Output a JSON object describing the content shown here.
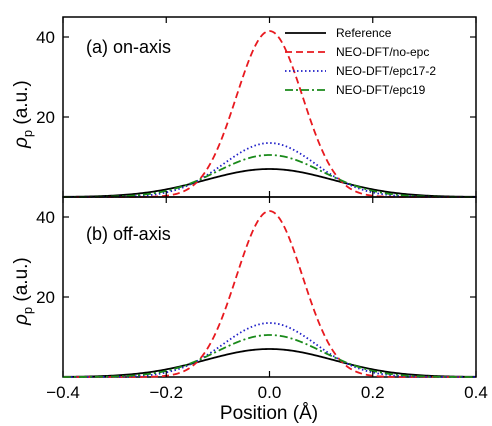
{
  "chart_data": [
    {
      "type": "line",
      "panel_label": "(a) on-axis",
      "xlabel": "Position (Å)",
      "ylabel_symbol": "ρ",
      "ylabel_subscript": "p",
      "ylabel_unit": "(a.u.)",
      "xlim": [
        -0.4,
        0.4
      ],
      "ylim": [
        0,
        45
      ],
      "xticks": [
        "−0.4",
        "−0.2",
        "0.0",
        "0.2",
        "0.4"
      ],
      "xtick_values": [
        -0.4,
        -0.2,
        0.0,
        0.2,
        0.4
      ],
      "yticks": [
        "20",
        "40"
      ],
      "ytick_values": [
        20,
        40
      ],
      "grid": false,
      "legend_position": "top-right",
      "series": [
        {
          "name": "Reference",
          "color": "#000000",
          "dash": "solid",
          "peak": 7.0,
          "sigma": 0.124
        },
        {
          "name": "NEO-DFT/no-epc",
          "color": "#e8191f",
          "dash": "dashed",
          "peak": 41.5,
          "sigma": 0.064
        },
        {
          "name": "NEO-DFT/epc17-2",
          "color": "#1f1fc8",
          "dash": "dotted",
          "peak": 13.5,
          "sigma": 0.09
        },
        {
          "name": "NEO-DFT/epc19",
          "color": "#1a8a1a",
          "dash": "dashdot",
          "peak": 10.5,
          "sigma": 0.102
        }
      ]
    },
    {
      "type": "line",
      "panel_label": "(b) off-axis",
      "xlabel": "Position (Å)",
      "ylabel_symbol": "ρ",
      "ylabel_subscript": "p",
      "ylabel_unit": "(a.u.)",
      "xlim": [
        -0.4,
        0.4
      ],
      "ylim": [
        0,
        45
      ],
      "xticks": [
        "−0.4",
        "−0.2",
        "0.0",
        "0.2",
        "0.4"
      ],
      "xtick_values": [
        -0.4,
        -0.2,
        0.0,
        0.2,
        0.4
      ],
      "yticks": [
        "20",
        "40"
      ],
      "ytick_values": [
        20,
        40
      ],
      "grid": false,
      "series": [
        {
          "name": "Reference",
          "color": "#000000",
          "dash": "solid",
          "peak": 7.0,
          "sigma": 0.124
        },
        {
          "name": "NEO-DFT/no-epc",
          "color": "#e8191f",
          "dash": "dashed",
          "peak": 41.5,
          "sigma": 0.064
        },
        {
          "name": "NEO-DFT/epc17-2",
          "color": "#1f1fc8",
          "dash": "dotted",
          "peak": 13.5,
          "sigma": 0.09
        },
        {
          "name": "NEO-DFT/epc19",
          "color": "#1a8a1a",
          "dash": "dashdot",
          "peak": 10.5,
          "sigma": 0.102
        }
      ]
    }
  ]
}
